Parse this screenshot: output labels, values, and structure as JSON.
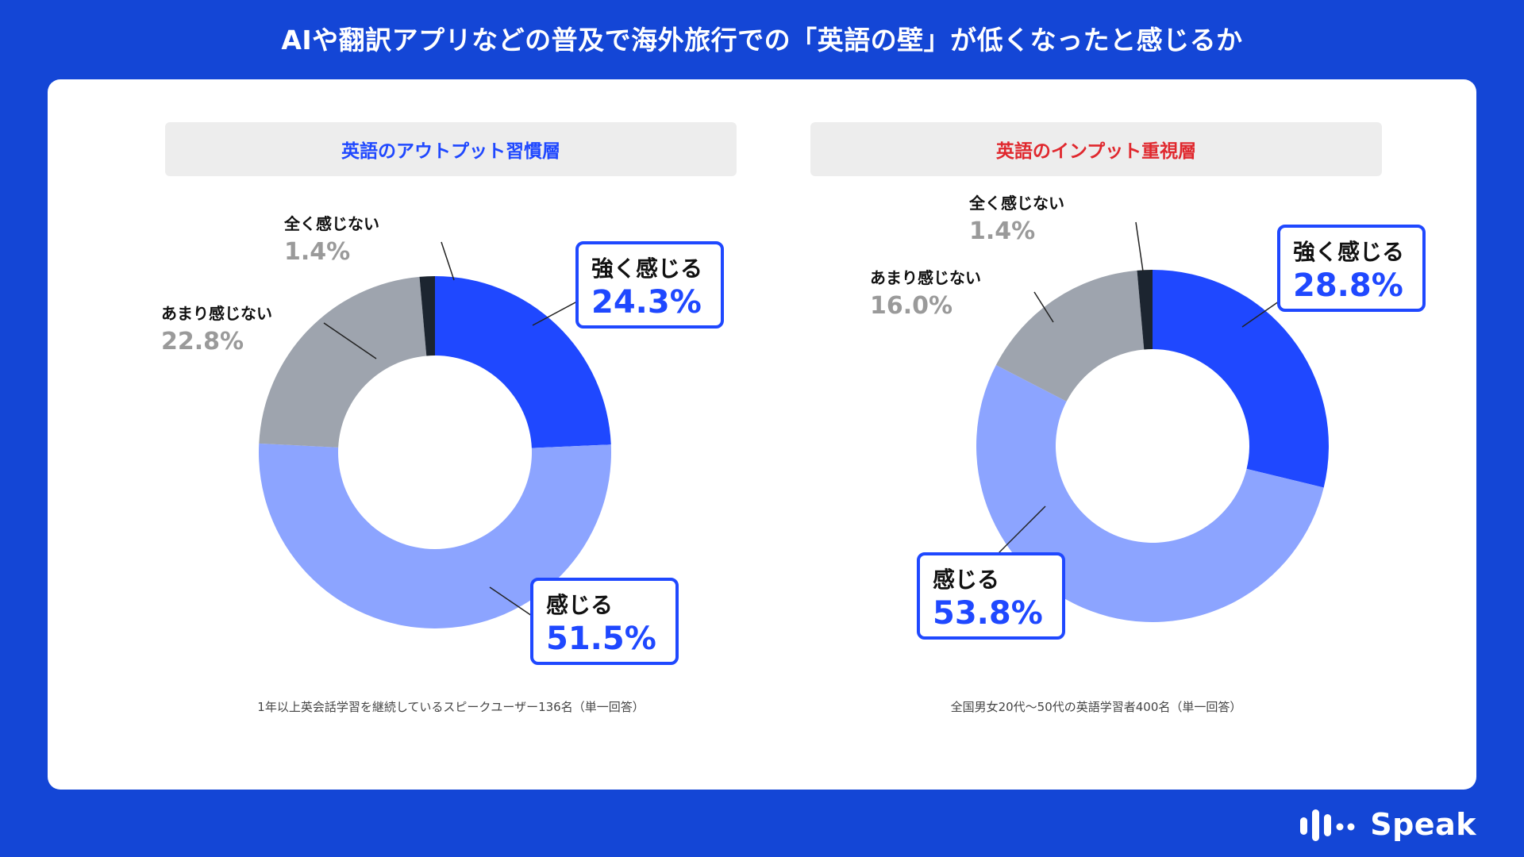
{
  "title": "AIや翻訳アプリなどの普及で海外旅行での「英語の壁」が低くなったと感じるか",
  "colors": {
    "background": "#1446D6",
    "strongly": "#1F48FF",
    "somewhat": "#8CA4FF",
    "not_much": "#9EA4AE",
    "not_at_all": "#1C2530",
    "accent_label": "#1F48FF",
    "header_left_text": "#1F48FF",
    "header_right_text": "#E0282E"
  },
  "panels": [
    {
      "header": "英語のアウトプット習慣層",
      "footnote": "1年以上英会話学習を継続しているスピークユーザー136名（単一回答）"
    },
    {
      "header": "英語のインプット重視層",
      "footnote": "全国男女20代〜50代の英語学習者400名（単一回答）"
    }
  ],
  "chart_data": [
    {
      "type": "pie",
      "categories": [
        "強く感じる",
        "感じる",
        "あまり感じない",
        "全く感じない"
      ],
      "values": [
        24.3,
        51.5,
        22.8,
        1.4
      ],
      "value_labels": [
        "24.3%",
        "51.5%",
        "22.8%",
        "1.4%"
      ]
    },
    {
      "type": "pie",
      "categories": [
        "強く感じる",
        "感じる",
        "あまり感じない",
        "全く感じない"
      ],
      "values": [
        28.8,
        53.8,
        16.0,
        1.4
      ],
      "value_labels": [
        "28.8%",
        "53.8%",
        "16.0%",
        "1.4%"
      ]
    }
  ],
  "logo": {
    "text": "Speak",
    "icon": "speak-logo-icon"
  }
}
